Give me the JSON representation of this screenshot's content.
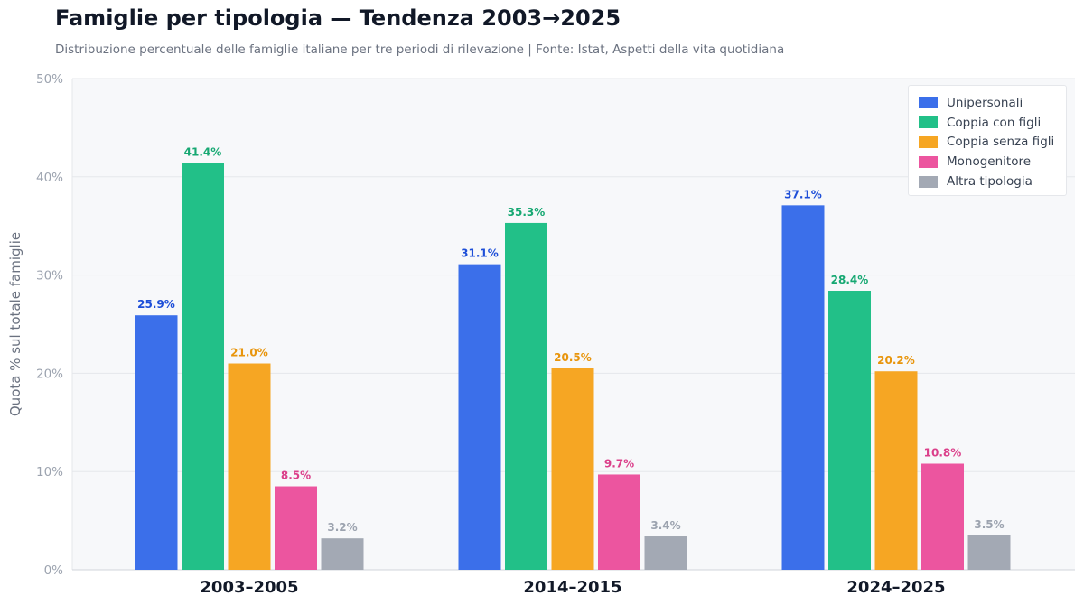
{
  "header": {
    "title": "Famiglie per tipologia — Tendenza 2003→2025",
    "subtitle": "Distribuzione percentuale delle famiglie italiane per tre periodi di rilevazione  |  Fonte: Istat, Aspetti della vita quotidiana"
  },
  "colors": {
    "plot_background": "#f7f8fa",
    "grid": "#e5e7eb",
    "tick_text": "#9ca3af",
    "category_text": "#111827"
  },
  "chart_data": {
    "type": "bar",
    "title": "Famiglie per tipologia — Tendenza 2003→2025",
    "subtitle": "Distribuzione percentuale delle famiglie italiane per tre periodi di rilevazione  |  Fonte: Istat, Aspetti della vita quotidiana",
    "categories": [
      "2003–2005",
      "2014–2015",
      "2024–2025"
    ],
    "xlabel": "",
    "ylabel": "Quota % sul totale famiglie",
    "ylim": [
      0,
      50
    ],
    "yticks": [
      "0%",
      "10%",
      "20%",
      "30%",
      "40%",
      "50%"
    ],
    "grid": true,
    "legend_position": "top-right",
    "series": [
      {
        "name": "Unipersonali",
        "color": "#3b6fea",
        "label_color": "#1d4ed8",
        "values": [
          25.9,
          31.1,
          37.1
        ],
        "labels": [
          "25.9%",
          "31.1%",
          "37.1%"
        ]
      },
      {
        "name": "Coppia con figli",
        "color": "#22c088",
        "label_color": "#16a872",
        "values": [
          41.4,
          35.3,
          28.4
        ],
        "labels": [
          "41.4%",
          "35.3%",
          "28.4%"
        ]
      },
      {
        "name": "Coppia senza figli",
        "color": "#f6a623",
        "label_color": "#e8950c",
        "values": [
          21.0,
          20.5,
          20.2
        ],
        "labels": [
          "21.0%",
          "20.5%",
          "20.2%"
        ]
      },
      {
        "name": "Monogenitore",
        "color": "#ec559f",
        "label_color": "#db3f8a",
        "values": [
          8.5,
          9.7,
          10.8
        ],
        "labels": [
          "8.5%",
          "9.7%",
          "10.8%"
        ]
      },
      {
        "name": "Altra tipologia",
        "color": "#a3a9b4",
        "label_color": "#9ca3af",
        "values": [
          3.2,
          3.4,
          3.5
        ],
        "labels": [
          "3.2%",
          "3.4%",
          "3.5%"
        ]
      }
    ]
  }
}
